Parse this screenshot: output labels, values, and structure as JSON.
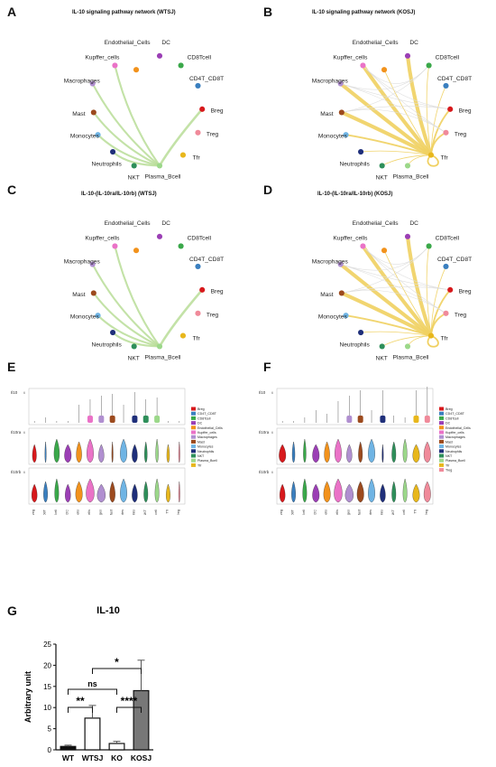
{
  "panels": {
    "A": {
      "label": "A",
      "title": "IL-10 signaling pathway network (WTSJ)"
    },
    "B": {
      "label": "B",
      "title": "IL-10 signaling pathway network (KOSJ)"
    },
    "C": {
      "label": "C",
      "title": "IL-10-(IL-10ra/IL-10rb) (WTSJ)"
    },
    "D": {
      "label": "D",
      "title": "IL-10-(IL-10ra/IL-10rb) (KOSJ)"
    },
    "E": {
      "label": "E"
    },
    "F": {
      "label": "F"
    },
    "G": {
      "label": "G"
    }
  },
  "cell_types": [
    "Breg",
    "CD4T_CD8T",
    "CD8Tcell",
    "DC",
    "Endothelial_Cells",
    "Kupffer_cells",
    "Macrophages",
    "Mast",
    "Monocytes",
    "Neutrophils",
    "NKT",
    "Plasma_Bcell",
    "Tfr",
    "Treg"
  ],
  "node_colors": {
    "Breg": "#d7191c",
    "CD4T_CD8T": "#3a7fbf",
    "CD8Tcell": "#3aa84a",
    "DC": "#9b3fb5",
    "Endothelial_Cells": "#f2921c",
    "Kupffer_cells": "#ea72c7",
    "Macrophages": "#b08fd0",
    "Mast": "#9c4a1e",
    "Monocytes": "#6fb4e4",
    "Neutrophils": "#1f2f7a",
    "NKT": "#2e8f5a",
    "Plasma_Bcell": "#9cd88a",
    "Tfr": "#e8b71c",
    "Treg": "#f08a9a"
  },
  "network_labels": {
    "Endothelial_Cells": "Endothelial_Cells",
    "DC": "DC",
    "Kupffer_cells": "Kupffer_cells",
    "CD8Tcell": "CD8Tcell",
    "Macrophages": "Macrophages",
    "CD4T_CD8T": "CD4T_CD8T",
    "Mast": "Mast",
    "Breg": "Breg",
    "Monocytes": "Monocytes",
    "Treg": "Treg",
    "Neutrophils": "Neutrophils",
    "Tfr": "Tfr",
    "NKT": "NKT",
    "Plasma_Bcell": "Plasma_Bcell"
  },
  "network_colors": {
    "WTSJ_edge": "#b8dd98",
    "KOSJ_edge": "#f0d060"
  },
  "violin": {
    "genes": [
      "Il10",
      "Il10ra",
      "Il10rb"
    ],
    "legend": [
      "Breg",
      "CD4T_CD8T",
      "CD8Tcell",
      "DC",
      "Endothelial_Cells",
      "Kupffer_cells",
      "Macrophages",
      "Mast",
      "Monocytes",
      "Neutrophils",
      "NKT",
      "Plasma_Bcell",
      "Tfr"
    ],
    "legend_F": [
      "Breg",
      "CD4T_CD8T",
      "CD8Tcell",
      "DC",
      "Endothelial_Cells",
      "Kupffer_cells",
      "Macrophages",
      "Mast",
      "Monocytes",
      "Neutrophils",
      "NKT",
      "Plasma_Bcell",
      "Tfr",
      "Treg"
    ],
    "xticks": [
      "Breg",
      "CD4T_CD8T",
      "CD8Tcell",
      "DC",
      "Endothelial_Cells",
      "Kupffer_cells",
      "Macrophages",
      "Mast",
      "Monocytes",
      "Neutrophils",
      "NKT",
      "Plasma_Bcell",
      "Tfr",
      "Treg"
    ],
    "ytick": "6"
  },
  "chart_data": {
    "type": "bar",
    "title": "IL-10",
    "ylabel": "Arbitrary unit",
    "xlabel": "",
    "categories": [
      "WT",
      "WTSJ",
      "KO",
      "KOSJ"
    ],
    "values": [
      0.8,
      7.5,
      1.5,
      14.0
    ],
    "errors": [
      0.3,
      3.0,
      0.5,
      7.2
    ],
    "fills": [
      "#111111",
      "#ffffff",
      "#ffffff",
      "#777777"
    ],
    "ylim": [
      0,
      25
    ],
    "yticks": [
      "0",
      "5",
      "10",
      "15",
      "20",
      "25"
    ],
    "significance": [
      {
        "a": "WT",
        "b": "WTSJ",
        "label": "**"
      },
      {
        "a": "KO",
        "b": "KOSJ",
        "label": "****"
      },
      {
        "a": "WT",
        "b": "KO",
        "label": "ns"
      },
      {
        "a": "WTSJ",
        "b": "KOSJ",
        "label": "*"
      }
    ]
  }
}
